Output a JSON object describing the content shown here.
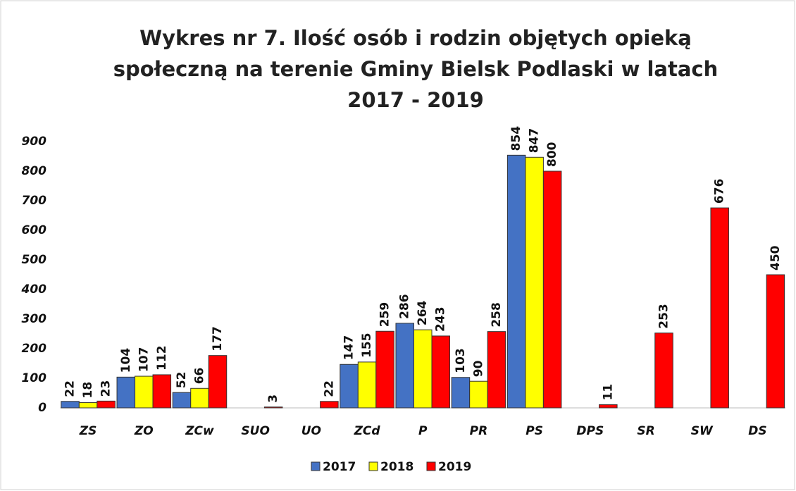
{
  "chart_data": {
    "type": "bar",
    "title": "Wykres nr 7. Ilość osób i rodzin objętych opieką społeczną na terenie Gminy Bielsk Podlaski w latach 2017 - 2019",
    "categories": [
      "ZS",
      "ZO",
      "ZCw",
      "SUO",
      "UO",
      "ZCd",
      "P",
      "PR",
      "PS",
      "DPS",
      "SR",
      "SW",
      "DS"
    ],
    "series": [
      {
        "name": "2017",
        "color": "#4472c4",
        "values": [
          22,
          104,
          52,
          null,
          null,
          147,
          286,
          103,
          854,
          null,
          null,
          null,
          null
        ]
      },
      {
        "name": "2018",
        "color": "#ffff00",
        "values": [
          18,
          107,
          66,
          null,
          null,
          155,
          264,
          90,
          847,
          null,
          null,
          null,
          null
        ]
      },
      {
        "name": "2019",
        "color": "#ff0000",
        "values": [
          23,
          112,
          177,
          3,
          22,
          259,
          243,
          258,
          800,
          11,
          253,
          676,
          450
        ]
      }
    ],
    "ylim": [
      0,
      900
    ],
    "yticks": [
      0,
      100,
      200,
      300,
      400,
      500,
      600,
      700,
      800,
      900
    ],
    "legend": "bottom"
  }
}
